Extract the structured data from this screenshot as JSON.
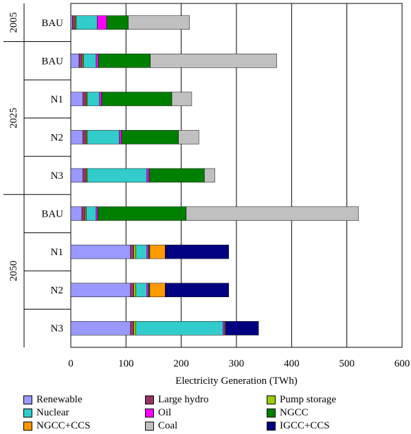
{
  "chart_data": {
    "type": "bar",
    "orientation": "horizontal",
    "stacked": true,
    "xlabel": "Electricity Generation (TWh)",
    "xlim": [
      0,
      600
    ],
    "xticks": [
      0,
      100,
      200,
      300,
      400,
      500,
      600
    ],
    "grid": "vertical major gridlines",
    "legend_position": "bottom",
    "groups": [
      {
        "name": "2005",
        "categories": [
          "BAU"
        ]
      },
      {
        "name": "2025",
        "categories": [
          "BAU",
          "N1",
          "N2",
          "N3"
        ]
      },
      {
        "name": "2050",
        "categories": [
          "BAU",
          "N1",
          "N2",
          "N3"
        ]
      }
    ],
    "categories": [
      "2005 BAU",
      "2025 BAU",
      "2025 N1",
      "2025 N2",
      "2025 N3",
      "2050 BAU",
      "2050 N1",
      "2050 N2",
      "2050 N3"
    ],
    "series": [
      {
        "name": "Renewable",
        "color": "#9999ff",
        "values": [
          3,
          15,
          22,
          22,
          22,
          20,
          108,
          108,
          108
        ]
      },
      {
        "name": "Large hydro",
        "color": "#993366",
        "values": [
          5,
          6,
          6,
          6,
          6,
          6,
          6,
          6,
          6
        ]
      },
      {
        "name": "Pump storage",
        "color": "#99cc00",
        "values": [
          2,
          2,
          2,
          2,
          2,
          2,
          4,
          4,
          4
        ]
      },
      {
        "name": "Nuclear",
        "color": "#33cccc",
        "values": [
          38,
          23,
          22,
          58,
          108,
          18,
          20,
          20,
          158
        ]
      },
      {
        "name": "Oil",
        "color": "#ff00ff",
        "values": [
          17,
          4,
          4,
          4,
          4,
          3,
          3,
          3,
          3
        ]
      },
      {
        "name": "NGCC",
        "color": "#008000",
        "values": [
          39,
          94,
          127,
          103,
          100,
          160,
          2,
          2,
          2
        ]
      },
      {
        "name": "NGCC+CCS",
        "color": "#ff9900",
        "values": [
          0,
          0,
          0,
          0,
          0,
          0,
          28,
          28,
          0
        ]
      },
      {
        "name": "Coal",
        "color": "#c0c0c0",
        "values": [
          111,
          229,
          36,
          37,
          19,
          312,
          0,
          0,
          0
        ]
      },
      {
        "name": "IGCC+CCS",
        "color": "#000080",
        "values": [
          0,
          0,
          0,
          0,
          0,
          0,
          115,
          115,
          59
        ]
      }
    ]
  }
}
